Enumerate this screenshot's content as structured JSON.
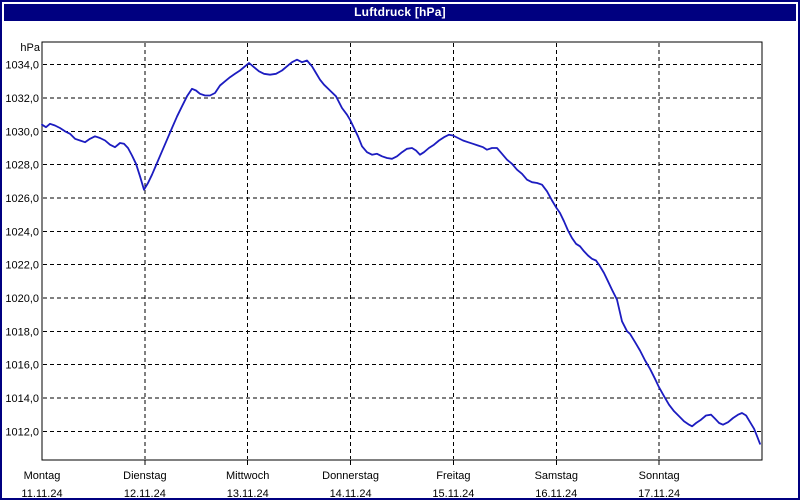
{
  "window": {
    "title": "Luftdruck [hPa]"
  },
  "colors": {
    "titlebar_bg": "#000080",
    "titlebar_text": "#ffffff",
    "window_border": "#000080",
    "axis": "#000000",
    "grid": "#000000",
    "text": "#000000",
    "plot_bg": "#ffffff",
    "line": "#1c1cc0"
  },
  "chart_data": {
    "type": "line",
    "title": "Luftdruck [hPa]",
    "unit_label": "hPa",
    "ylim": [
      1010.28,
      1035.36
    ],
    "xlim_days": [
      0,
      7
    ],
    "grid": "dashed",
    "legend": "none",
    "y_ticks": [
      {
        "value": 1034,
        "label": "1034,0"
      },
      {
        "value": 1032,
        "label": "1032,0"
      },
      {
        "value": 1030,
        "label": "1030,0"
      },
      {
        "value": 1028,
        "label": "1028,0"
      },
      {
        "value": 1026,
        "label": "1026,0"
      },
      {
        "value": 1024,
        "label": "1024,0"
      },
      {
        "value": 1022,
        "label": "1022,0"
      },
      {
        "value": 1020,
        "label": "1020,0"
      },
      {
        "value": 1018,
        "label": "1018,0"
      },
      {
        "value": 1016,
        "label": "1016,0"
      },
      {
        "value": 1014,
        "label": "1014,0"
      },
      {
        "value": 1012,
        "label": "1012,0"
      }
    ],
    "x_ticks": [
      {
        "day_index": 0,
        "name": "Montag",
        "date": "11.11.24"
      },
      {
        "day_index": 1,
        "name": "Dienstag",
        "date": "12.11.24"
      },
      {
        "day_index": 2,
        "name": "Mittwoch",
        "date": "13.11.24"
      },
      {
        "day_index": 3,
        "name": "Donnerstag",
        "date": "14.11.24"
      },
      {
        "day_index": 4,
        "name": "Freitag",
        "date": "15.11.24"
      },
      {
        "day_index": 5,
        "name": "Samstag",
        "date": "16.11.24"
      },
      {
        "day_index": 6,
        "name": "Sonntag",
        "date": "17.11.24"
      }
    ],
    "series": [
      {
        "name": "Luftdruck",
        "color": "#1c1cc0",
        "points": [
          [
            0.0,
            1030.4
          ],
          [
            0.039,
            1030.25
          ],
          [
            0.078,
            1030.45
          ],
          [
            0.126,
            1030.35
          ],
          [
            0.175,
            1030.2
          ],
          [
            0.224,
            1030.0
          ],
          [
            0.272,
            1029.85
          ],
          [
            0.321,
            1029.55
          ],
          [
            0.369,
            1029.45
          ],
          [
            0.418,
            1029.35
          ],
          [
            0.467,
            1029.55
          ],
          [
            0.515,
            1029.7
          ],
          [
            0.564,
            1029.6
          ],
          [
            0.613,
            1029.45
          ],
          [
            0.661,
            1029.2
          ],
          [
            0.71,
            1029.05
          ],
          [
            0.758,
            1029.3
          ],
          [
            0.797,
            1029.25
          ],
          [
            0.836,
            1029.0
          ],
          [
            0.875,
            1028.55
          ],
          [
            0.914,
            1028.05
          ],
          [
            0.953,
            1027.3
          ],
          [
            0.992,
            1026.5
          ],
          [
            1.031,
            1026.9
          ],
          [
            1.069,
            1027.4
          ],
          [
            1.118,
            1028.1
          ],
          [
            1.167,
            1028.8
          ],
          [
            1.215,
            1029.5
          ],
          [
            1.264,
            1030.2
          ],
          [
            1.313,
            1030.9
          ],
          [
            1.361,
            1031.5
          ],
          [
            1.41,
            1032.1
          ],
          [
            1.458,
            1032.55
          ],
          [
            1.497,
            1032.45
          ],
          [
            1.536,
            1032.25
          ],
          [
            1.585,
            1032.15
          ],
          [
            1.633,
            1032.15
          ],
          [
            1.682,
            1032.3
          ],
          [
            1.731,
            1032.75
          ],
          [
            1.779,
            1033.0
          ],
          [
            1.828,
            1033.25
          ],
          [
            1.876,
            1033.45
          ],
          [
            1.925,
            1033.65
          ],
          [
            1.974,
            1033.9
          ],
          [
            2.013,
            1034.1
          ],
          [
            2.061,
            1033.85
          ],
          [
            2.11,
            1033.6
          ],
          [
            2.158,
            1033.45
          ],
          [
            2.217,
            1033.4
          ],
          [
            2.275,
            1033.45
          ],
          [
            2.333,
            1033.65
          ],
          [
            2.382,
            1033.9
          ],
          [
            2.431,
            1034.15
          ],
          [
            2.479,
            1034.3
          ],
          [
            2.528,
            1034.15
          ],
          [
            2.576,
            1034.25
          ],
          [
            2.625,
            1033.9
          ],
          [
            2.664,
            1033.5
          ],
          [
            2.703,
            1033.1
          ],
          [
            2.742,
            1032.8
          ],
          [
            2.8,
            1032.45
          ],
          [
            2.858,
            1032.1
          ],
          [
            2.917,
            1031.4
          ],
          [
            2.965,
            1031.0
          ],
          [
            2.994,
            1030.7
          ],
          [
            3.033,
            1030.2
          ],
          [
            3.072,
            1029.7
          ],
          [
            3.111,
            1029.1
          ],
          [
            3.16,
            1028.75
          ],
          [
            3.208,
            1028.6
          ],
          [
            3.257,
            1028.65
          ],
          [
            3.306,
            1028.5
          ],
          [
            3.354,
            1028.4
          ],
          [
            3.403,
            1028.35
          ],
          [
            3.451,
            1028.5
          ],
          [
            3.5,
            1028.75
          ],
          [
            3.549,
            1028.95
          ],
          [
            3.597,
            1029.0
          ],
          [
            3.636,
            1028.85
          ],
          [
            3.675,
            1028.6
          ],
          [
            3.714,
            1028.75
          ],
          [
            3.762,
            1029.0
          ],
          [
            3.811,
            1029.2
          ],
          [
            3.86,
            1029.45
          ],
          [
            3.908,
            1029.65
          ],
          [
            3.957,
            1029.8
          ],
          [
            3.996,
            1029.75
          ],
          [
            4.044,
            1029.6
          ],
          [
            4.093,
            1029.45
          ],
          [
            4.142,
            1029.35
          ],
          [
            4.19,
            1029.25
          ],
          [
            4.239,
            1029.15
          ],
          [
            4.288,
            1029.05
          ],
          [
            4.326,
            1028.9
          ],
          [
            4.375,
            1029.0
          ],
          [
            4.424,
            1029.0
          ],
          [
            4.472,
            1028.65
          ],
          [
            4.521,
            1028.3
          ],
          [
            4.569,
            1028.05
          ],
          [
            4.618,
            1027.7
          ],
          [
            4.667,
            1027.45
          ],
          [
            4.715,
            1027.1
          ],
          [
            4.764,
            1026.95
          ],
          [
            4.813,
            1026.9
          ],
          [
            4.861,
            1026.8
          ],
          [
            4.91,
            1026.4
          ],
          [
            4.958,
            1025.85
          ],
          [
            4.997,
            1025.45
          ],
          [
            5.036,
            1025.1
          ],
          [
            5.075,
            1024.6
          ],
          [
            5.114,
            1024.05
          ],
          [
            5.153,
            1023.6
          ],
          [
            5.192,
            1023.25
          ],
          [
            5.231,
            1023.1
          ],
          [
            5.269,
            1022.8
          ],
          [
            5.308,
            1022.55
          ],
          [
            5.347,
            1022.35
          ],
          [
            5.386,
            1022.25
          ],
          [
            5.425,
            1021.9
          ],
          [
            5.464,
            1021.5
          ],
          [
            5.503,
            1021.0
          ],
          [
            5.542,
            1020.5
          ],
          [
            5.59,
            1019.9
          ],
          [
            5.639,
            1018.6
          ],
          [
            5.688,
            1018.0
          ],
          [
            5.717,
            1017.85
          ],
          [
            5.766,
            1017.35
          ],
          [
            5.814,
            1016.85
          ],
          [
            5.863,
            1016.25
          ],
          [
            5.911,
            1015.75
          ],
          [
            5.96,
            1015.15
          ],
          [
            5.999,
            1014.65
          ],
          [
            6.048,
            1014.1
          ],
          [
            6.096,
            1013.6
          ],
          [
            6.145,
            1013.2
          ],
          [
            6.194,
            1012.9
          ],
          [
            6.242,
            1012.6
          ],
          [
            6.291,
            1012.4
          ],
          [
            6.32,
            1012.3
          ],
          [
            6.359,
            1012.5
          ],
          [
            6.407,
            1012.7
          ],
          [
            6.456,
            1012.95
          ],
          [
            6.505,
            1013.0
          ],
          [
            6.544,
            1012.75
          ],
          [
            6.583,
            1012.5
          ],
          [
            6.621,
            1012.4
          ],
          [
            6.67,
            1012.55
          ],
          [
            6.719,
            1012.8
          ],
          [
            6.767,
            1013.0
          ],
          [
            6.806,
            1013.1
          ],
          [
            6.845,
            1012.95
          ],
          [
            6.884,
            1012.55
          ],
          [
            6.923,
            1012.15
          ],
          [
            6.952,
            1011.7
          ],
          [
            6.981,
            1011.25
          ]
        ]
      }
    ]
  }
}
